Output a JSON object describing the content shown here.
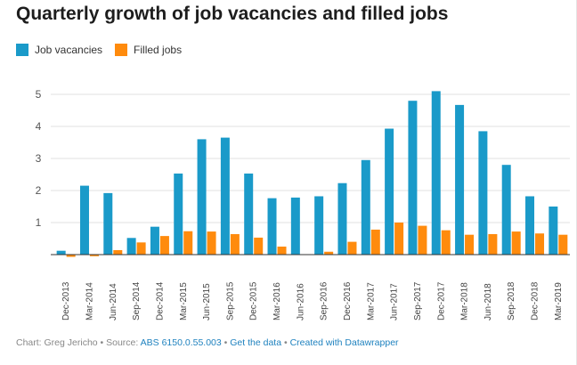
{
  "chart_data": {
    "type": "bar",
    "title": "Quarterly growth of job vacancies and filled jobs",
    "categories": [
      "Dec-2013",
      "Mar-2014",
      "Jun-2014",
      "Sep-2014",
      "Dec-2014",
      "Mar-2015",
      "Jun-2015",
      "Sep-2015",
      "Dec-2015",
      "Mar-2016",
      "Jun-2016",
      "Sep-2016",
      "Dec-2016",
      "Mar-2017",
      "Jun-2017",
      "Sep-2017",
      "Dec-2017",
      "Mar-2018",
      "Jun-2018",
      "Sep-2018",
      "Dec-2018",
      "Mar-2019"
    ],
    "series": [
      {
        "name": "Job vacancies",
        "color": "#1a9ac9",
        "values": [
          0.12,
          2.15,
          1.92,
          0.52,
          0.87,
          2.53,
          3.6,
          3.65,
          2.53,
          1.76,
          1.78,
          1.82,
          2.23,
          2.95,
          3.93,
          4.8,
          5.1,
          4.67,
          3.85,
          2.8,
          1.82,
          1.5
        ]
      },
      {
        "name": "Filled jobs",
        "color": "#ff8b0d",
        "values": [
          -0.07,
          -0.05,
          0.14,
          0.38,
          0.58,
          0.73,
          0.72,
          0.64,
          0.53,
          0.25,
          0.0,
          0.09,
          0.4,
          0.78,
          1.0,
          0.9,
          0.76,
          0.62,
          0.64,
          0.72,
          0.66,
          0.62
        ]
      }
    ],
    "yticks": [
      1,
      2,
      3,
      4,
      5
    ],
    "ylim": [
      -0.1,
      5.2
    ],
    "xlabel": "",
    "ylabel": "",
    "grid": true,
    "legend": "top-left"
  },
  "footer": {
    "prefix": "Chart: Greg Jericho • Source: ",
    "source": "ABS 6150.0.55.003",
    "sep1": " • ",
    "get_data": "Get the data",
    "sep2": " • ",
    "credit": "Created with Datawrapper"
  }
}
